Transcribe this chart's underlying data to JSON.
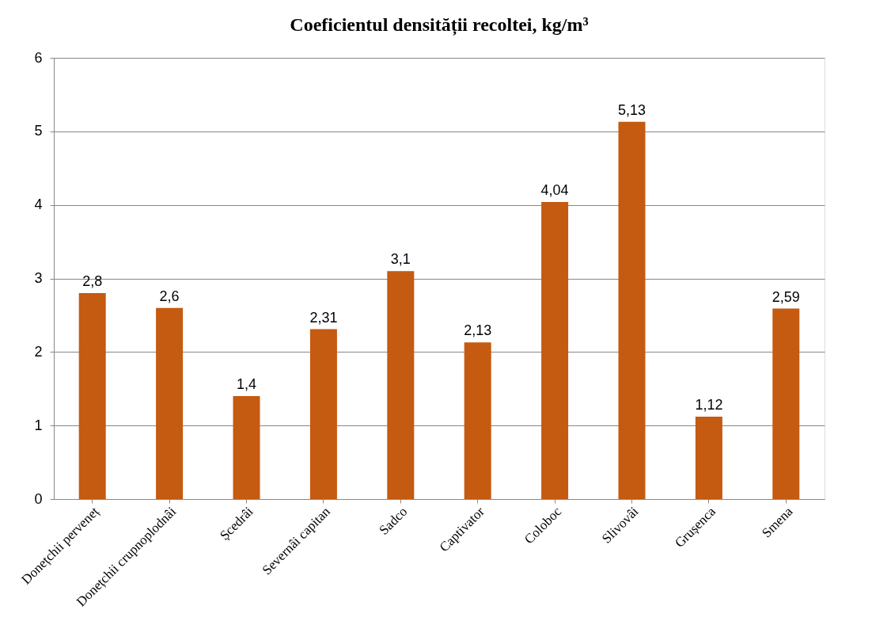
{
  "chart_data": {
    "type": "bar",
    "title": "Coeficientul densității recoltei, kg/m³",
    "categories": [
      "Donețchii perveneț",
      "Donețchii crupnoplodnâi",
      "Șcedrâi",
      "Severnâi capitan",
      "Sadco",
      "Captivator",
      "Coloboc",
      "Slivovâi",
      "Grușenca",
      "Smena"
    ],
    "values": [
      2.8,
      2.6,
      1.4,
      2.31,
      3.1,
      2.13,
      4.04,
      5.13,
      1.12,
      2.59
    ],
    "value_labels": [
      "2,8",
      "2,6",
      "1,4",
      "2,31",
      "3,1",
      "2,13",
      "4,04",
      "5,13",
      "1,12",
      "2,59"
    ],
    "color": "#c55a11",
    "ylim": [
      0,
      6
    ],
    "yticks": [
      0,
      1,
      2,
      3,
      4,
      5,
      6
    ],
    "grid": "y"
  }
}
